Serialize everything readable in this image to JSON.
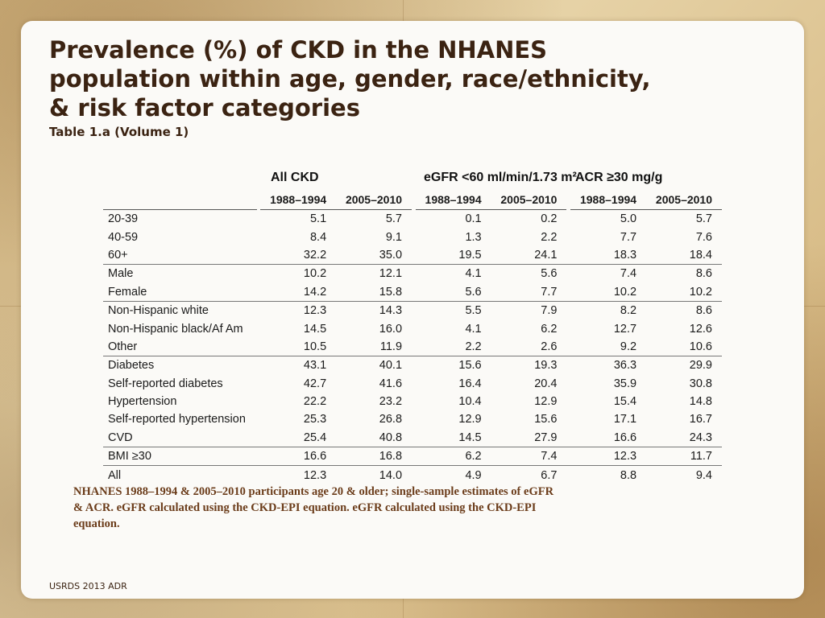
{
  "slide": {
    "title": "Prevalence (%) of CKD in the NHANES population within age, gender, race/ethnicity, & risk factor categories",
    "subtitle": "Table 1.a (Volume 1)",
    "footnote": "NHANES 1988–1994 & 2005–2010 participants age 20 & older; single-sample estimates of eGFR & ACR. eGFR calculated using the CKD-EPI equation. eGFR calculated using the CKD-EPI equation.",
    "footer": "USRDS 2013 ADR"
  },
  "table": {
    "groups": [
      "All CKD",
      "eGFR <60 ml/min/1.73 m²",
      "ACR ≥30 mg/g"
    ],
    "periods": [
      "1988–1994",
      "2005–2010",
      "1988–1994",
      "2005–2010",
      "1988–1994",
      "2005–2010"
    ],
    "rows": [
      {
        "label": "20-39",
        "values": [
          "5.1",
          "5.7",
          "0.1",
          "0.2",
          "5.0",
          "5.7"
        ]
      },
      {
        "label": "40-59",
        "values": [
          "8.4",
          "9.1",
          "1.3",
          "2.2",
          "7.7",
          "7.6"
        ]
      },
      {
        "label": "60+",
        "values": [
          "32.2",
          "35.0",
          "19.5",
          "24.1",
          "18.3",
          "18.4"
        ]
      },
      {
        "label": "Male",
        "values": [
          "10.2",
          "12.1",
          "4.1",
          "5.6",
          "7.4",
          "8.6"
        ]
      },
      {
        "label": "Female",
        "values": [
          "14.2",
          "15.8",
          "5.6",
          "7.7",
          "10.2",
          "10.2"
        ]
      },
      {
        "label": "Non-Hispanic white",
        "values": [
          "12.3",
          "14.3",
          "5.5",
          "7.9",
          "8.2",
          "8.6"
        ]
      },
      {
        "label": "Non-Hispanic black/Af Am",
        "values": [
          "14.5",
          "16.0",
          "4.1",
          "6.2",
          "12.7",
          "12.6"
        ]
      },
      {
        "label": "Other",
        "values": [
          "10.5",
          "11.9",
          "2.2",
          "2.6",
          "9.2",
          "10.6"
        ]
      },
      {
        "label": "Diabetes",
        "values": [
          "43.1",
          "40.1",
          "15.6",
          "19.3",
          "36.3",
          "29.9"
        ]
      },
      {
        "label": "Self-reported diabetes",
        "values": [
          "42.7",
          "41.6",
          "16.4",
          "20.4",
          "35.9",
          "30.8"
        ]
      },
      {
        "label": "Hypertension",
        "values": [
          "22.2",
          "23.2",
          "10.4",
          "12.9",
          "15.4",
          "14.8"
        ]
      },
      {
        "label": "Self-reported hypertension",
        "values": [
          "25.3",
          "26.8",
          "12.9",
          "15.6",
          "17.1",
          "16.7"
        ]
      },
      {
        "label": "CVD",
        "values": [
          "25.4",
          "40.8",
          "14.5",
          "27.9",
          "16.6",
          "24.3"
        ]
      },
      {
        "label": "BMI ≥30",
        "values": [
          "16.6",
          "16.8",
          "6.2",
          "7.4",
          "12.3",
          "11.7"
        ]
      },
      {
        "label": "All",
        "values": [
          "12.3",
          "14.0",
          "4.9",
          "6.7",
          "8.8",
          "9.4"
        ]
      }
    ]
  }
}
